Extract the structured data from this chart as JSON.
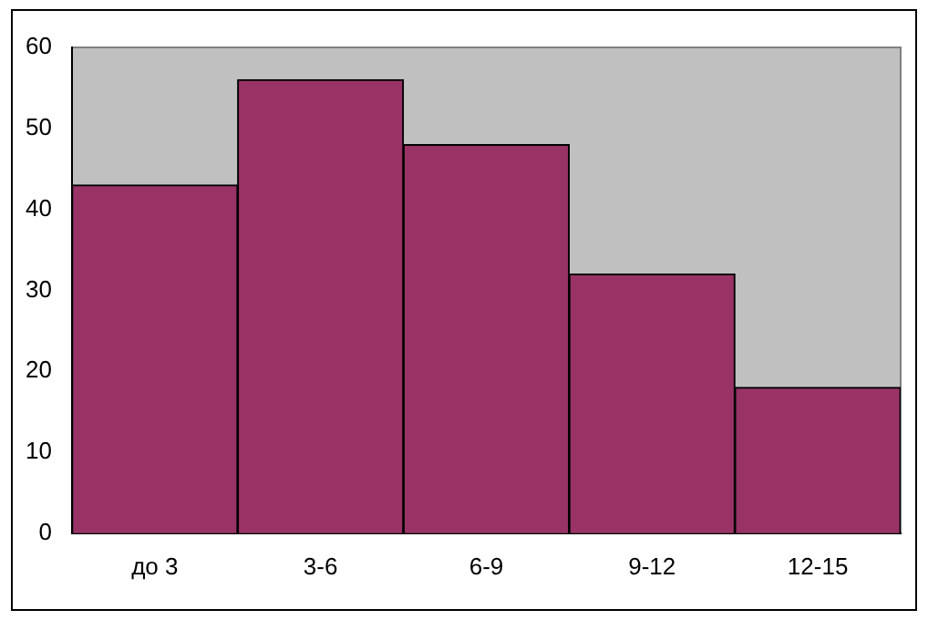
{
  "chart_data": {
    "type": "bar",
    "categories": [
      "до 3",
      "3-6",
      "6-9",
      "9-12",
      "12-15"
    ],
    "values": [
      43,
      56,
      48,
      32,
      18
    ],
    "color": "#993366",
    "ylim": [
      0,
      60
    ],
    "yticks": [
      0,
      10,
      20,
      30,
      40,
      50,
      60
    ],
    "grid": false,
    "legend": false
  }
}
